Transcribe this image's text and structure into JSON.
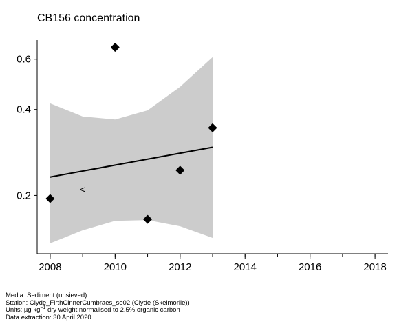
{
  "chart_data": {
    "type": "scatter",
    "title": "CB156 concentration",
    "xlabel": "",
    "ylabel": "",
    "log_y": true,
    "xlim": [
      2007.6,
      2018.4
    ],
    "ylim": [
      0.125,
      0.7
    ],
    "x_ticks": [
      2008,
      2010,
      2012,
      2014,
      2016,
      2018
    ],
    "x_tick_labels": [
      "2008",
      "2010",
      "2012",
      "2014",
      "2016",
      "2018"
    ],
    "y_ticks": [
      0.2,
      0.4,
      0.6
    ],
    "y_tick_labels": [
      "0.2",
      "0.4",
      "0.6"
    ],
    "points": [
      {
        "x": 2008,
        "y": 0.195
      },
      {
        "x": 2010,
        "y": 0.66
      },
      {
        "x": 2011,
        "y": 0.165
      },
      {
        "x": 2012,
        "y": 0.245
      },
      {
        "x": 2013,
        "y": 0.345
      }
    ],
    "less_than_markers": [
      {
        "x": 2009,
        "y": 0.21,
        "label": "<"
      }
    ],
    "trend_line": [
      {
        "x": 2008,
        "y": 0.232
      },
      {
        "x": 2013,
        "y": 0.295
      }
    ],
    "confidence_band": [
      {
        "x": 2008,
        "lower": 0.136,
        "upper": 0.42
      },
      {
        "x": 2009,
        "lower": 0.151,
        "upper": 0.378
      },
      {
        "x": 2010,
        "lower": 0.163,
        "upper": 0.369
      },
      {
        "x": 2011,
        "lower": 0.164,
        "upper": 0.397
      },
      {
        "x": 2012,
        "lower": 0.156,
        "upper": 0.48
      },
      {
        "x": 2013,
        "lower": 0.142,
        "upper": 0.61
      }
    ],
    "colors": {
      "points": "#000000",
      "line": "#000000",
      "band": "#cccccc",
      "axis": "#000000"
    }
  },
  "footer": {
    "media": "Media: Sediment (unsieved)",
    "station": "Station: Clyde_FirthClnnerCumbraes_se02 (Clyde (Skelmorlie))",
    "units_prefix": "Units:  µg kg",
    "units_sup": "−1",
    "units_suffix": " dry weight normalised to 2.5% organic carbon",
    "extraction": "Data extraction: 30 April 2020"
  }
}
